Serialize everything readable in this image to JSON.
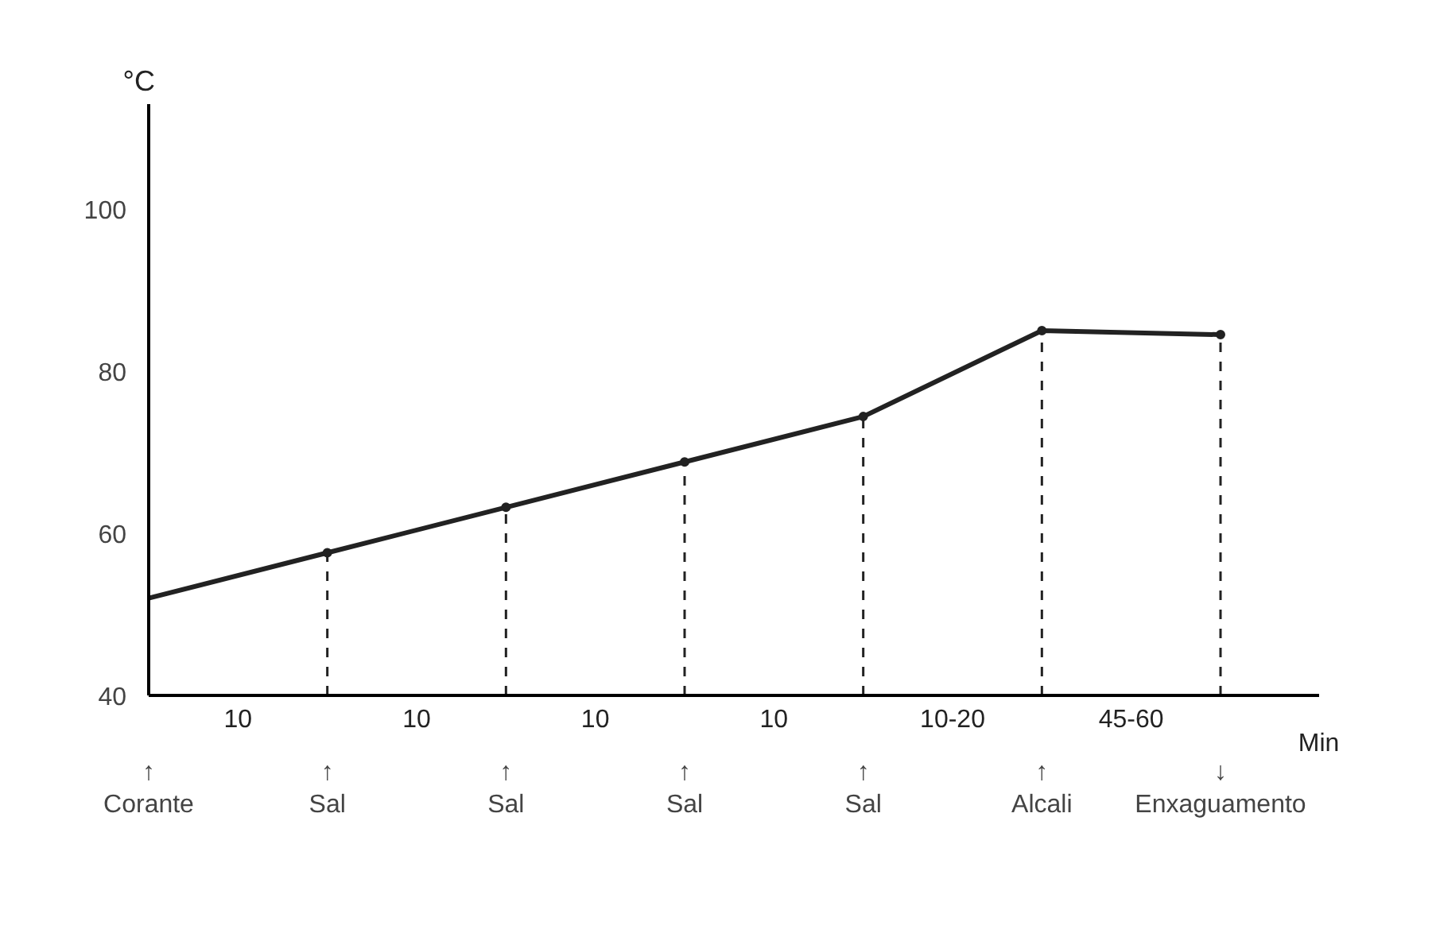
{
  "chart_data": {
    "type": "line",
    "ylabel": "°C",
    "xlabel": "Min",
    "categories": [
      "↑\nCorante",
      "↑\nSal",
      "↑\nSal",
      "↑\nSal",
      "↑\nSal",
      "↑\nAlcali",
      "↓\nEnxaguamento"
    ],
    "series": [
      {
        "color": "#222222",
        "values": [
          52,
          57.6,
          63.2,
          68.8,
          74.4,
          85,
          84.5
        ]
      },
      {
        "type": "lollipop",
        "color": "#222222",
        "line_style": "dashed",
        "marker": "circle",
        "values": [
          null,
          57.6,
          63.2,
          68.8,
          74.4,
          85,
          84.5
        ]
      }
    ],
    "ylim": [
      40,
      113
    ],
    "yticks": [
      40,
      60,
      80,
      100
    ],
    "grid": false,
    "marker": "none",
    "line_style": "solid",
    "annotations": [
      "10",
      "10",
      "10",
      "10",
      "10-20",
      "45-60"
    ]
  }
}
